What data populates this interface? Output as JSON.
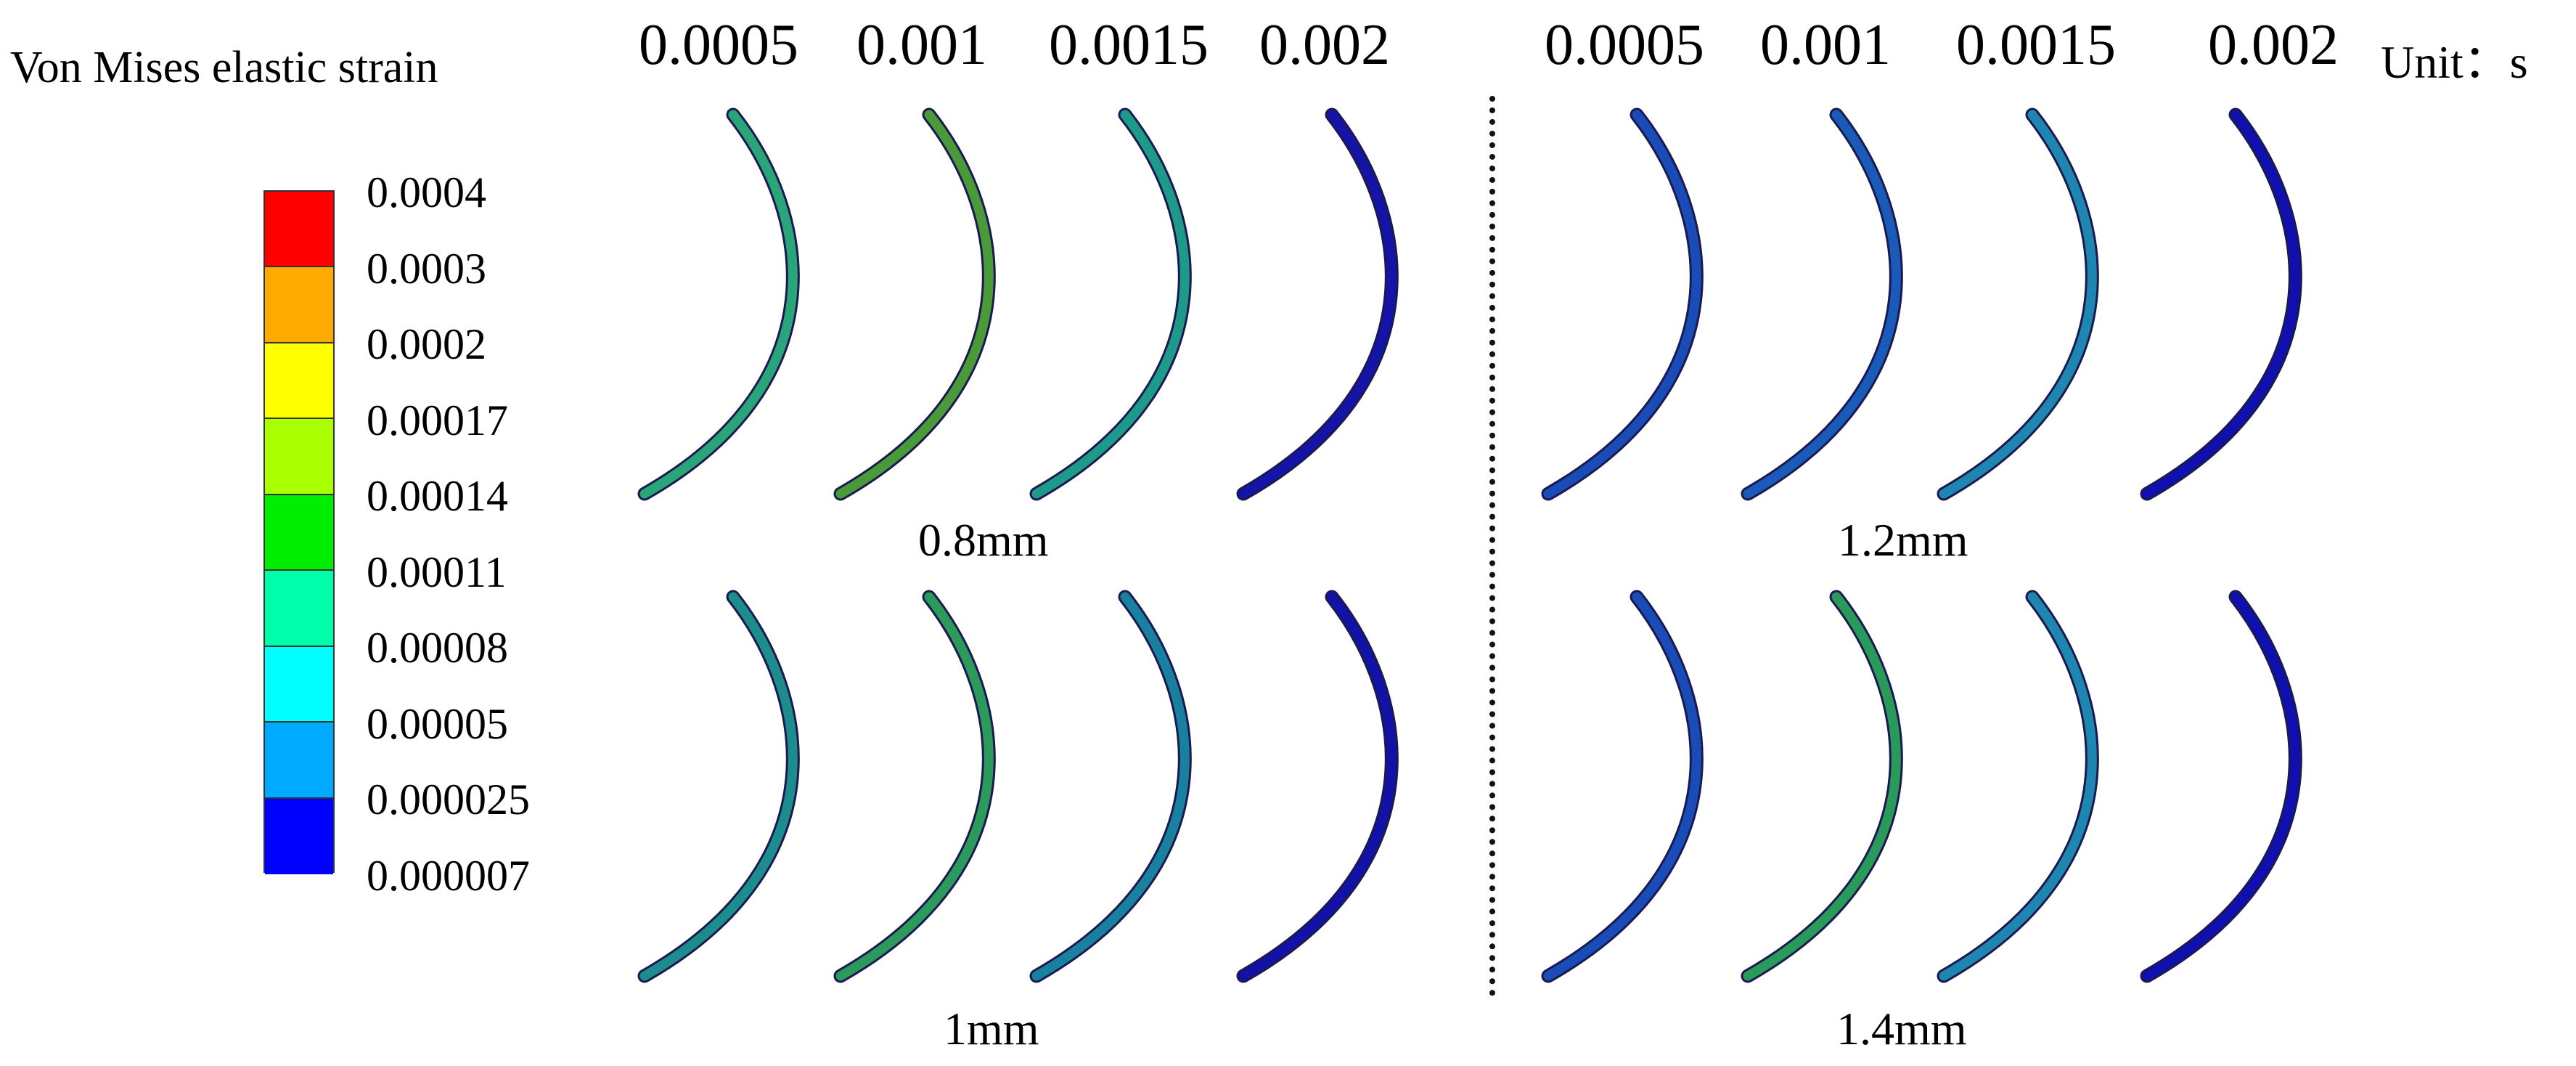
{
  "legend": {
    "title": "Von Mises elastic strain",
    "levels": [
      {
        "label": "0.0004",
        "color": "#ff0000"
      },
      {
        "label": "0.0003",
        "color": "#ffaa00"
      },
      {
        "label": "0.0002",
        "color": "#ffff00"
      },
      {
        "label": "0.00017",
        "color": "#aaff00"
      },
      {
        "label": "0.00014",
        "color": "#00ee00"
      },
      {
        "label": "0.00011",
        "color": "#00ffaa"
      },
      {
        "label": "0.00008",
        "color": "#00ffff"
      },
      {
        "label": "0.00005",
        "color": "#00aaff"
      },
      {
        "label": "0.000025",
        "color": "#0000ff"
      },
      {
        "label": "0.000007",
        "color": ""
      }
    ]
  },
  "time_labels_left": [
    "0.0005",
    "0.001",
    "0.0015",
    "0.002"
  ],
  "time_labels_right": [
    "0.0005",
    "0.001",
    "0.0015",
    "0.002"
  ],
  "unit_label": "Unit：s",
  "groups": [
    {
      "label": "0.8mm",
      "colors": [
        "#2aa57a",
        "#4a9a3a",
        "#1e9a8a",
        "#1414a8"
      ]
    },
    {
      "label": "1.2mm",
      "colors": [
        "#1a4cb8",
        "#1a5ab8",
        "#1e86b0",
        "#1010b0"
      ]
    },
    {
      "label": "1mm",
      "colors": [
        "#1c8c8c",
        "#2b9a5a",
        "#1a80a0",
        "#1212a8"
      ]
    },
    {
      "label": "1.4mm",
      "colors": [
        "#1a4cb8",
        "#2a9a5a",
        "#1e86b0",
        "#1010b0"
      ]
    }
  ]
}
